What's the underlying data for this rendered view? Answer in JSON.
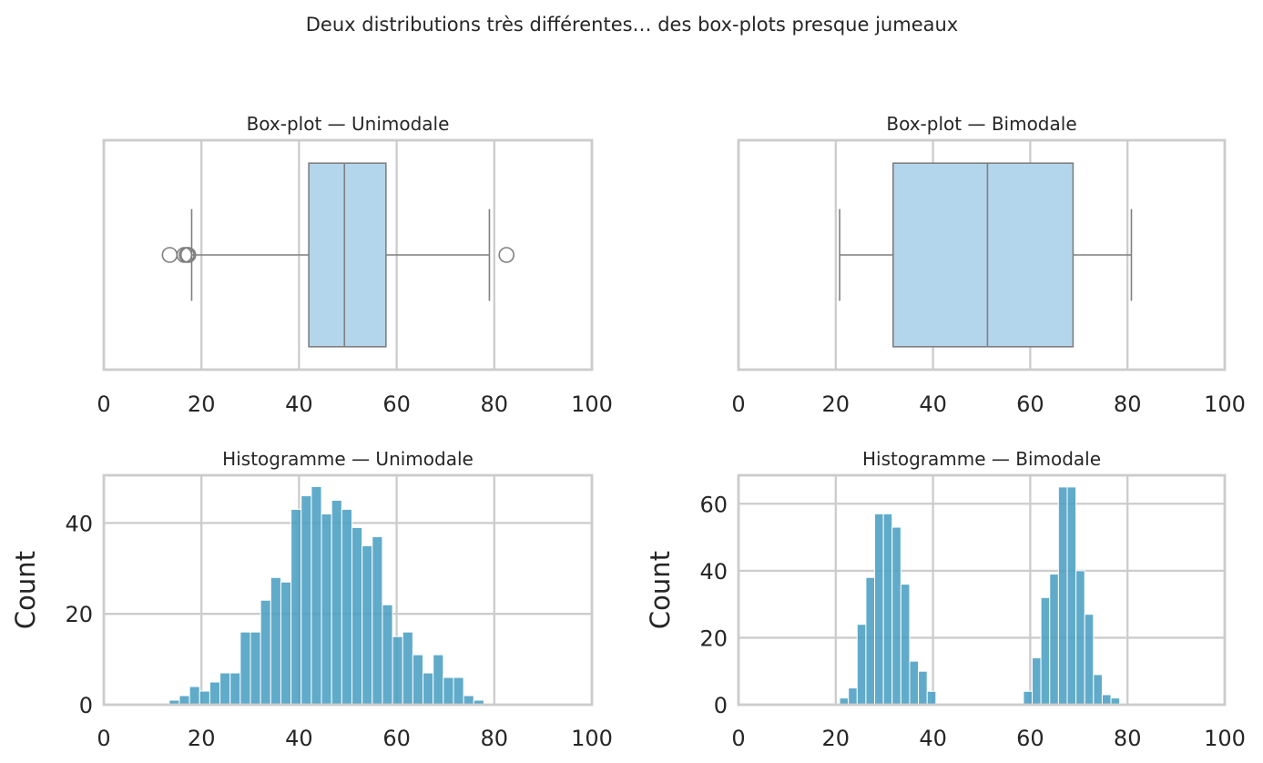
{
  "figure_title": "Deux distributions très différentes… des box-plots presque jumeaux",
  "chart_data": [
    {
      "type": "box",
      "title": "Box-plot — Unimodale",
      "xlabel": "",
      "ylabel": "",
      "xlim": [
        0,
        100
      ],
      "xticks": [
        "0",
        "20",
        "40",
        "60",
        "80",
        "100"
      ],
      "grid": true,
      "stats": {
        "whisker_low": 18,
        "q1": 42,
        "median": 49.3,
        "q3": 57.8,
        "whisker_high": 79
      },
      "outliers": [
        13.5,
        16.5,
        17,
        17.3,
        82.5
      ]
    },
    {
      "type": "box",
      "title": "Box-plot — Bimodale",
      "xlabel": "",
      "ylabel": "",
      "xlim": [
        0,
        100
      ],
      "xticks": [
        "0",
        "20",
        "40",
        "60",
        "80",
        "100"
      ],
      "grid": true,
      "stats": {
        "whisker_low": 20.8,
        "q1": 31.8,
        "median": 51.2,
        "q3": 68.8,
        "whisker_high": 80.8
      },
      "outliers": []
    },
    {
      "type": "bar",
      "title": "Histogramme — Unimodale",
      "xlabel": "",
      "ylabel": "Count",
      "xlim": [
        0,
        100
      ],
      "ylim": [
        0,
        50.5
      ],
      "xticks": [
        "0",
        "20",
        "40",
        "60",
        "80",
        "100"
      ],
      "yticks": [
        0,
        20,
        40
      ],
      "ytick_labels": [
        "0",
        "20",
        "40"
      ],
      "grid": true,
      "bin_start": 13.4,
      "bin_width": 2.08,
      "counts": [
        1,
        2,
        4,
        3,
        5,
        7,
        7,
        16,
        16,
        23,
        28,
        27,
        43,
        46,
        48,
        42,
        45,
        43,
        39,
        35,
        37,
        22,
        15,
        16,
        11,
        7,
        11,
        6,
        6,
        2,
        1
      ]
    },
    {
      "type": "bar",
      "title": "Histogramme — Bimodale",
      "xlabel": "",
      "ylabel": "Count",
      "xlim": [
        0,
        100
      ],
      "ylim": [
        0,
        68.5
      ],
      "xticks": [
        "0",
        "20",
        "40",
        "60",
        "80",
        "100"
      ],
      "yticks": [
        0,
        20,
        40,
        60
      ],
      "ytick_labels": [
        "0",
        "20",
        "40",
        "60"
      ],
      "grid": true,
      "bin_start": 20.8,
      "bin_width": 1.8,
      "counts": [
        2,
        5,
        24,
        38,
        57,
        57,
        53,
        36,
        13,
        10,
        4,
        0,
        0,
        0,
        0,
        0,
        0,
        0,
        0,
        0,
        0,
        4,
        14,
        32,
        39,
        65,
        65,
        40,
        27,
        9,
        3,
        2
      ]
    }
  ]
}
